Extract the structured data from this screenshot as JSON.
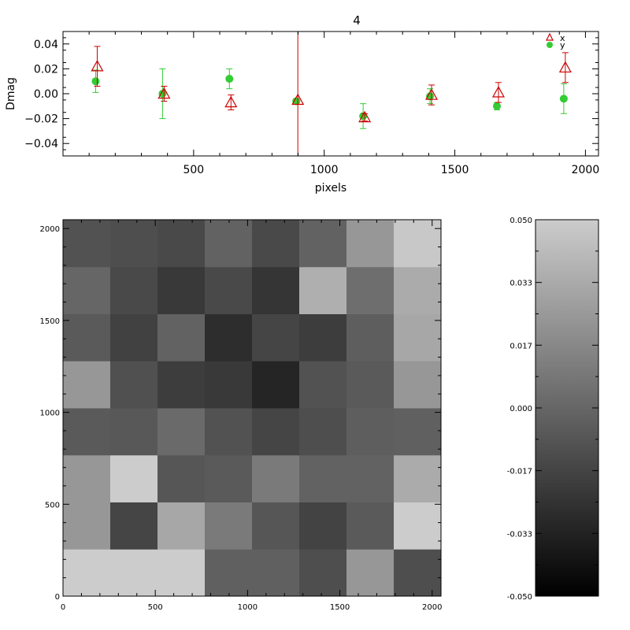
{
  "chart_data": [
    {
      "type": "scatter",
      "title": "4",
      "xlabel": "pixels",
      "ylabel": "Dmag",
      "xlim": [
        0,
        2050
      ],
      "ylim": [
        -0.05,
        0.05
      ],
      "xticks": [
        "500",
        "1000",
        "1500",
        "2000"
      ],
      "yticks": [
        "0.04",
        "0.02",
        "0.00",
        "−0.02",
        "−0.04"
      ],
      "legend": {
        "placement": "top-right",
        "entries": [
          "x",
          "y"
        ]
      },
      "series": [
        {
          "name": "x",
          "marker": "triangle",
          "color": "#cc0000",
          "x": [
            128,
            384,
            640,
            896,
            1152,
            1408,
            1664,
            1920
          ],
          "y": [
            0.022,
            0.0,
            -0.007,
            -0.005,
            -0.019,
            -0.001,
            0.001,
            0.021
          ],
          "err": [
            0.016,
            0.006,
            0.006,
            0.07,
            0.003,
            0.008,
            0.008,
            0.012
          ]
        },
        {
          "name": "y",
          "marker": "circle",
          "color": "#33cc33",
          "x": [
            128,
            384,
            640,
            896,
            1152,
            1408,
            1664,
            1920
          ],
          "y": [
            0.01,
            0.0,
            0.012,
            -0.006,
            -0.018,
            -0.002,
            -0.01,
            -0.004
          ],
          "err": [
            0.009,
            0.02,
            0.008,
            0.002,
            0.01,
            0.006,
            0.003,
            0.012
          ]
        }
      ]
    },
    {
      "type": "heatmap",
      "xlim": [
        0,
        2048
      ],
      "ylim": [
        0,
        2048
      ],
      "xticks": [
        "0",
        "500",
        "1000",
        "1500",
        "2000"
      ],
      "yticks": [
        "0",
        "500",
        "1000",
        "1500",
        "2000"
      ],
      "grid_origin": "bottom-left",
      "values": [
        [
          0.05,
          0.05,
          0.05,
          -0.003,
          -0.003,
          -0.012,
          0.024,
          -0.012
        ],
        [
          0.024,
          -0.016,
          0.032,
          0.01,
          -0.008,
          -0.017,
          -0.006,
          0.05
        ],
        [
          0.024,
          0.05,
          -0.008,
          -0.006,
          0.01,
          -0.002,
          -0.002,
          0.034
        ],
        [
          -0.006,
          -0.007,
          0.002,
          -0.01,
          -0.016,
          -0.012,
          -0.004,
          -0.003
        ],
        [
          0.024,
          -0.011,
          -0.02,
          -0.022,
          -0.032,
          -0.01,
          -0.006,
          0.024
        ],
        [
          -0.006,
          -0.018,
          -0.002,
          -0.028,
          -0.016,
          -0.02,
          -0.004,
          0.032
        ],
        [
          0.0,
          -0.014,
          -0.022,
          -0.014,
          -0.024,
          0.036,
          0.004,
          0.034
        ],
        [
          -0.01,
          -0.012,
          -0.014,
          -0.002,
          -0.014,
          -0.002,
          0.024,
          0.048
        ]
      ]
    },
    {
      "type": "colorbar",
      "range": [
        -0.05,
        0.05
      ],
      "ticks": [
        "0.050",
        "0.033",
        "0.017",
        "0.000",
        "-0.017",
        "-0.033",
        "-0.050"
      ]
    }
  ]
}
